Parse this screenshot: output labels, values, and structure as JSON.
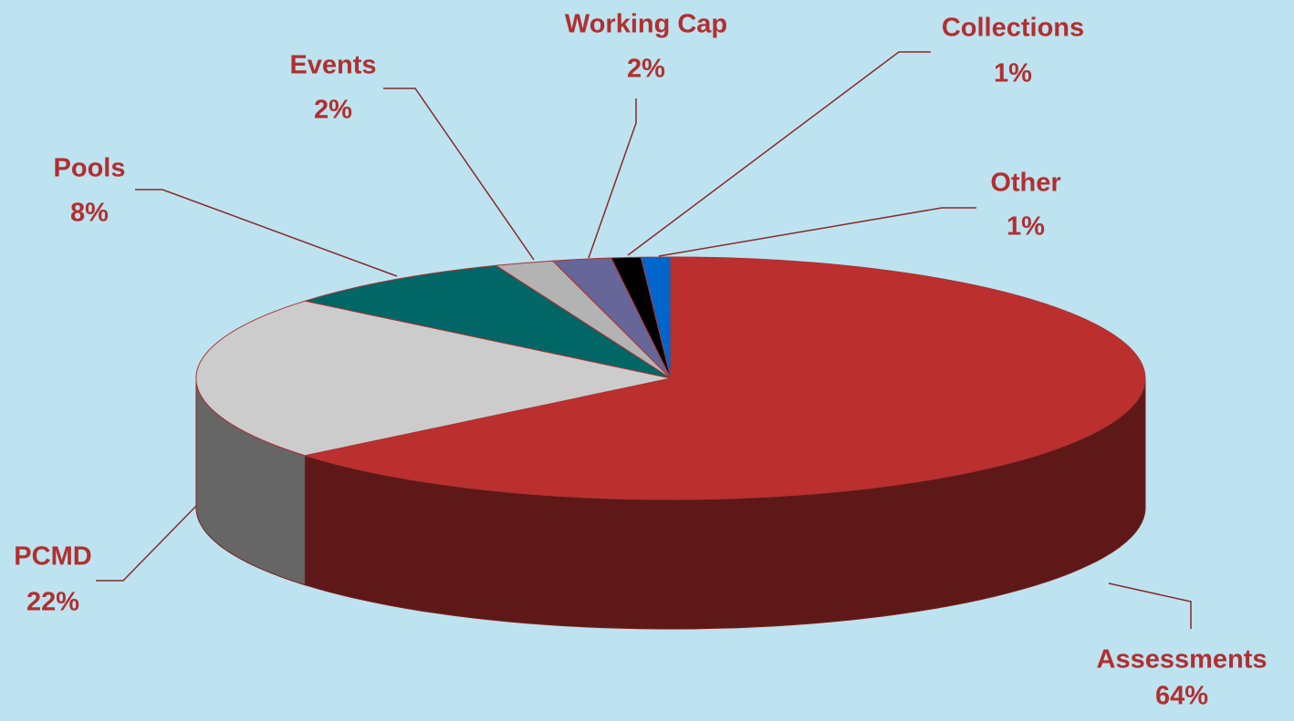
{
  "chart_data": {
    "type": "pie",
    "categories": [
      "Assessments",
      "PCMD",
      "Pools",
      "Events",
      "Working Cap",
      "Collections",
      "Other"
    ],
    "values": [
      64,
      22,
      8,
      2,
      2,
      1,
      1
    ],
    "value_labels": [
      "64%",
      "22%",
      "8%",
      "2%",
      "2%",
      "1%",
      "1%"
    ],
    "colors": [
      "#bb2f2f",
      "#cccccc",
      "#006666",
      "#b3b3b3",
      "#666699",
      "#000000",
      "#0066cc"
    ]
  }
}
